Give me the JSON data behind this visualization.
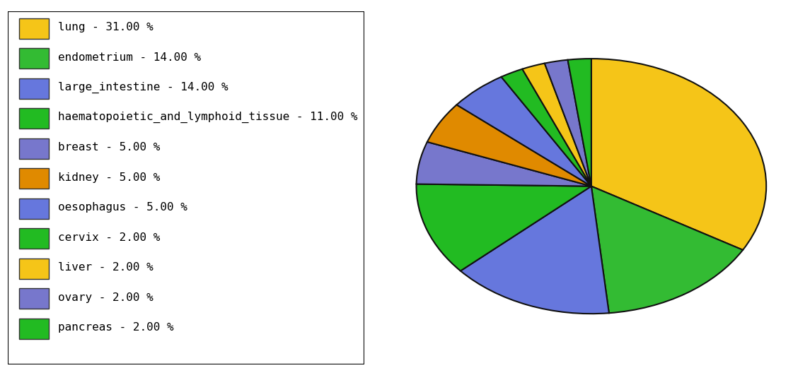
{
  "labels": [
    "lung",
    "endometrium",
    "large_intestine",
    "haematopoietic_and_lymphoid_tissue",
    "breast",
    "kidney",
    "oesophagus",
    "cervix",
    "liver",
    "ovary",
    "pancreas"
  ],
  "values": [
    31.0,
    14.0,
    14.0,
    11.0,
    5.0,
    5.0,
    5.0,
    2.0,
    2.0,
    2.0,
    2.0
  ],
  "colors": [
    "#F5C518",
    "#33BB33",
    "#6677DD",
    "#22BB22",
    "#7777CC",
    "#E08A00",
    "#6677DD",
    "#22BB22",
    "#F5C518",
    "#7777CC",
    "#22BB22"
  ],
  "legend_labels": [
    "lung - 31.00 %",
    "endometrium - 14.00 %",
    "large_intestine - 14.00 %",
    "haematopoietic_and_lymphoid_tissue - 11.00 %",
    "breast - 5.00 %",
    "kidney - 5.00 %",
    "oesophagus - 5.00 %",
    "cervix - 2.00 %",
    "liver - 2.00 %",
    "ovary - 2.00 %",
    "pancreas - 2.00 %"
  ],
  "legend_colors": [
    "#F5C518",
    "#33BB33",
    "#6677DD",
    "#22BB22",
    "#7777CC",
    "#E08A00",
    "#6677DD",
    "#22BB22",
    "#F5C518",
    "#7777CC",
    "#22BB22"
  ],
  "background_color": "#ffffff",
  "edge_color": "#111111",
  "startangle": 90
}
